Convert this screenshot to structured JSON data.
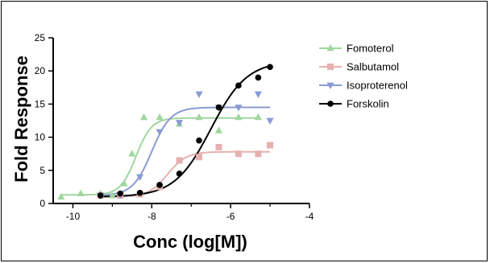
{
  "chart_data": {
    "type": "scatter",
    "title": "",
    "xlabel": "Conc (log[M])",
    "ylabel": "Fold Response",
    "xlim": [
      -10.5,
      -4
    ],
    "ylim": [
      0,
      25
    ],
    "xticks": [
      "-10",
      "-8",
      "-6",
      "-4"
    ],
    "yticks": [
      "0",
      "5",
      "10",
      "15",
      "20",
      "25"
    ],
    "legend": "top-right",
    "grid": false,
    "series": [
      {
        "name": "Fomoterol",
        "color": "#9fd79f",
        "marker": "triangle-up",
        "x": [
          -10.3,
          -9.8,
          -9.3,
          -9.0,
          -8.7,
          -8.5,
          -8.2,
          -7.8,
          -7.3,
          -6.8,
          -6.3,
          -5.8,
          -5.3
        ],
        "y": [
          1.0,
          1.5,
          1.5,
          1.2,
          3.0,
          7.5,
          13.0,
          13.0,
          12.0,
          13.0,
          11.0,
          13.0,
          13.0
        ],
        "fit": {
          "bottom": 1.3,
          "top": 12.9,
          "logEC50": -8.4,
          "hill": 2.2
        }
      },
      {
        "name": "Salbutamol",
        "color": "#e6b0b0",
        "marker": "square",
        "x": [
          -9.3,
          -8.8,
          -8.3,
          -7.8,
          -7.3,
          -6.8,
          -6.3,
          -5.8,
          -5.3,
          -5.0
        ],
        "y": [
          1.2,
          1.2,
          1.4,
          2.5,
          6.5,
          7.0,
          8.5,
          7.5,
          7.5,
          8.8
        ],
        "fit": {
          "bottom": 1.0,
          "top": 7.8,
          "logEC50": -7.6,
          "hill": 1.8
        }
      },
      {
        "name": "Isoproterenol",
        "color": "#8a9bd4",
        "marker": "triangle-down",
        "x": [
          -9.3,
          -8.8,
          -8.3,
          -7.8,
          -7.3,
          -6.8,
          -6.3,
          -5.8,
          -5.3,
          -5.0
        ],
        "y": [
          1.2,
          1.3,
          4.0,
          10.8,
          12.2,
          16.5,
          14.5,
          14.5,
          16.5,
          12.5
        ],
        "fit": {
          "bottom": 1.2,
          "top": 14.5,
          "logEC50": -8.0,
          "hill": 1.8
        }
      },
      {
        "name": "Forskolin",
        "color": "#000000",
        "marker": "circle",
        "x": [
          -9.3,
          -8.8,
          -8.3,
          -7.8,
          -7.3,
          -6.8,
          -6.3,
          -5.8,
          -5.3,
          -5.0
        ],
        "y": [
          1.2,
          1.5,
          1.6,
          2.8,
          4.5,
          9.5,
          14.5,
          17.8,
          19.0,
          20.6
        ],
        "fit": {
          "bottom": 1.0,
          "top": 21.5,
          "logEC50": -6.5,
          "hill": 0.95
        }
      }
    ]
  }
}
